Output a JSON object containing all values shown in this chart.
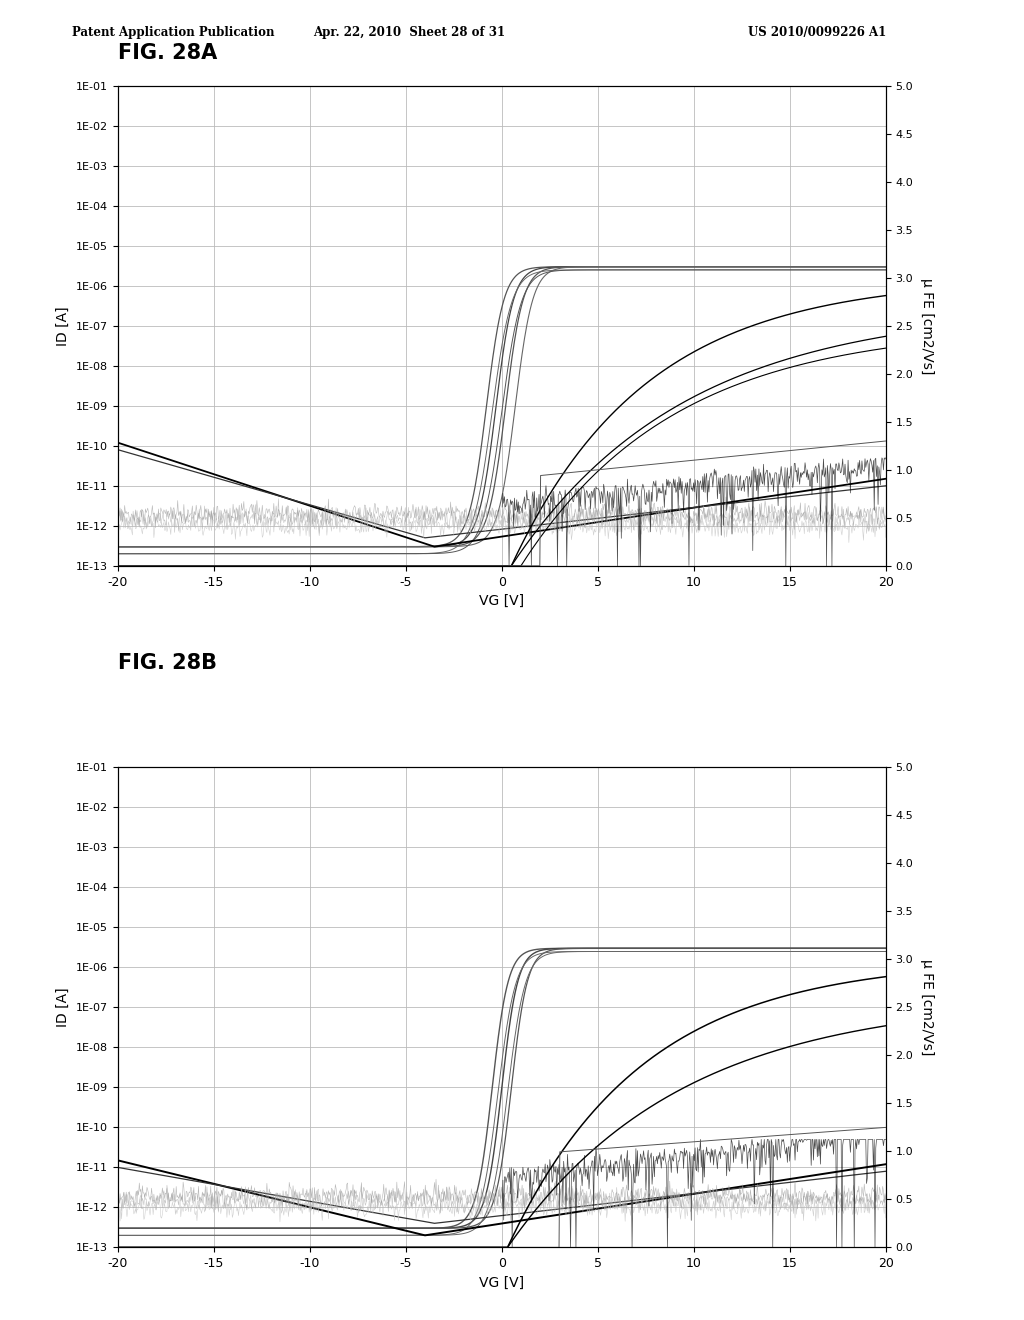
{
  "header_left": "Patent Application Publication",
  "header_center": "Apr. 22, 2010  Sheet 28 of 31",
  "header_right": "US 2010/0099226 A1",
  "fig_label_A": "FIG. 28A",
  "fig_label_B": "FIG. 28B",
  "xlabel": "VG [V]",
  "ylabel_left": "ID [A]",
  "ylabel_right": "μ FE [cm2/Vs]",
  "xlim": [
    -20,
    20
  ],
  "xticks": [
    -20,
    -15,
    -10,
    -5,
    0,
    5,
    10,
    15,
    20
  ],
  "ylim_log": [
    1e-13,
    0.1
  ],
  "ylim_right": [
    0.0,
    5.0
  ],
  "yticks_right": [
    0.0,
    0.5,
    1.0,
    1.5,
    2.0,
    2.5,
    3.0,
    3.5,
    4.0,
    4.5,
    5.0
  ],
  "background_color": "#ffffff",
  "grid_color": "#bbbbbb"
}
